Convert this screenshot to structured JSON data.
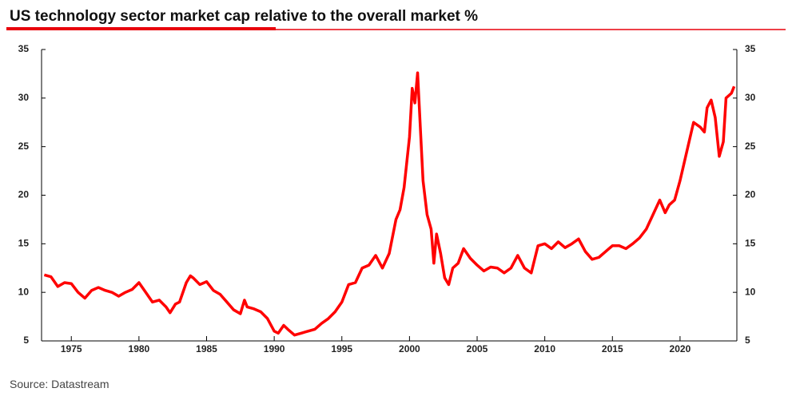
{
  "chart_data": {
    "type": "line",
    "title": "US technology sector market cap relative to the overall market %",
    "source": "Source: Datastream",
    "x": [
      1973.0,
      1973.5,
      1974.0,
      1974.5,
      1975.0,
      1975.5,
      1976.0,
      1976.5,
      1977.0,
      1977.5,
      1978.0,
      1978.5,
      1979.0,
      1979.5,
      1980.0,
      1980.5,
      1981.0,
      1981.5,
      1982.0,
      1982.3,
      1982.7,
      1983.0,
      1983.5,
      1983.8,
      1984.0,
      1984.5,
      1985.0,
      1985.5,
      1986.0,
      1986.5,
      1987.0,
      1987.5,
      1987.8,
      1988.0,
      1988.5,
      1989.0,
      1989.5,
      1990.0,
      1990.3,
      1990.7,
      1991.0,
      1991.5,
      1992.0,
      1992.5,
      1993.0,
      1993.5,
      1994.0,
      1994.5,
      1995.0,
      1995.5,
      1996.0,
      1996.5,
      1997.0,
      1997.5,
      1998.0,
      1998.5,
      1999.0,
      1999.3,
      1999.6,
      2000.0,
      2000.2,
      2000.4,
      2000.6,
      2000.8,
      2001.0,
      2001.3,
      2001.6,
      2001.8,
      2002.0,
      2002.3,
      2002.6,
      2002.9,
      2003.2,
      2003.6,
      2004.0,
      2004.5,
      2005.0,
      2005.5,
      2006.0,
      2006.5,
      2007.0,
      2007.5,
      2008.0,
      2008.5,
      2009.0,
      2009.5,
      2010.0,
      2010.5,
      2011.0,
      2011.5,
      2012.0,
      2012.5,
      2013.0,
      2013.5,
      2014.0,
      2014.5,
      2015.0,
      2015.5,
      2016.0,
      2016.5,
      2017.0,
      2017.5,
      2018.0,
      2018.5,
      2018.9,
      2019.2,
      2019.6,
      2020.0,
      2020.5,
      2021.0,
      2021.5,
      2021.8,
      2022.0,
      2022.3,
      2022.6,
      2022.9,
      2023.2,
      2023.4,
      2023.8,
      2024.0
    ],
    "series": [
      {
        "name": "US technology sector market cap relative to the overall market",
        "color": "#ff0000",
        "values": [
          11.8,
          11.6,
          10.6,
          11.0,
          10.9,
          10.0,
          9.4,
          10.2,
          10.5,
          10.2,
          10.0,
          9.6,
          10.0,
          10.3,
          11.0,
          10.0,
          9.0,
          9.2,
          8.5,
          7.9,
          8.8,
          9.0,
          11.0,
          11.7,
          11.5,
          10.8,
          11.1,
          10.2,
          9.8,
          9.0,
          8.2,
          7.8,
          9.2,
          8.5,
          8.3,
          8.0,
          7.3,
          6.0,
          5.8,
          6.6,
          6.2,
          5.6,
          5.8,
          6.0,
          6.2,
          6.8,
          7.3,
          8.0,
          9.0,
          10.8,
          11.0,
          12.5,
          12.8,
          13.8,
          12.5,
          14.0,
          17.5,
          18.5,
          20.8,
          26.0,
          31.0,
          29.5,
          32.6,
          27.0,
          21.5,
          18.0,
          16.5,
          13.0,
          16.0,
          14.0,
          11.5,
          10.8,
          12.5,
          13.0,
          14.5,
          13.5,
          12.8,
          12.2,
          12.6,
          12.5,
          12.0,
          12.5,
          13.8,
          12.5,
          12.0,
          14.8,
          15.0,
          14.5,
          15.2,
          14.6,
          15.0,
          15.5,
          14.2,
          13.4,
          13.6,
          14.2,
          14.8,
          14.8,
          14.5,
          15.0,
          15.6,
          16.5,
          18.0,
          19.5,
          18.2,
          19.0,
          19.5,
          21.5,
          24.5,
          27.5,
          27.0,
          26.5,
          29.0,
          29.8,
          28.0,
          24.0,
          25.5,
          30.0,
          30.5,
          31.2
        ]
      }
    ],
    "xlim": [
      1972.8,
      2024.2
    ],
    "xticks": [
      1975,
      1980,
      1985,
      1990,
      1995,
      2000,
      2005,
      2010,
      2015,
      2020
    ],
    "ylim": [
      5,
      35
    ],
    "yticks": [
      5,
      10,
      15,
      20,
      25,
      30,
      35
    ],
    "y2lim": [
      5,
      35
    ],
    "y2ticks": [
      5,
      10,
      15,
      20,
      25,
      30,
      35
    ],
    "accent_color": "#e8000b"
  }
}
